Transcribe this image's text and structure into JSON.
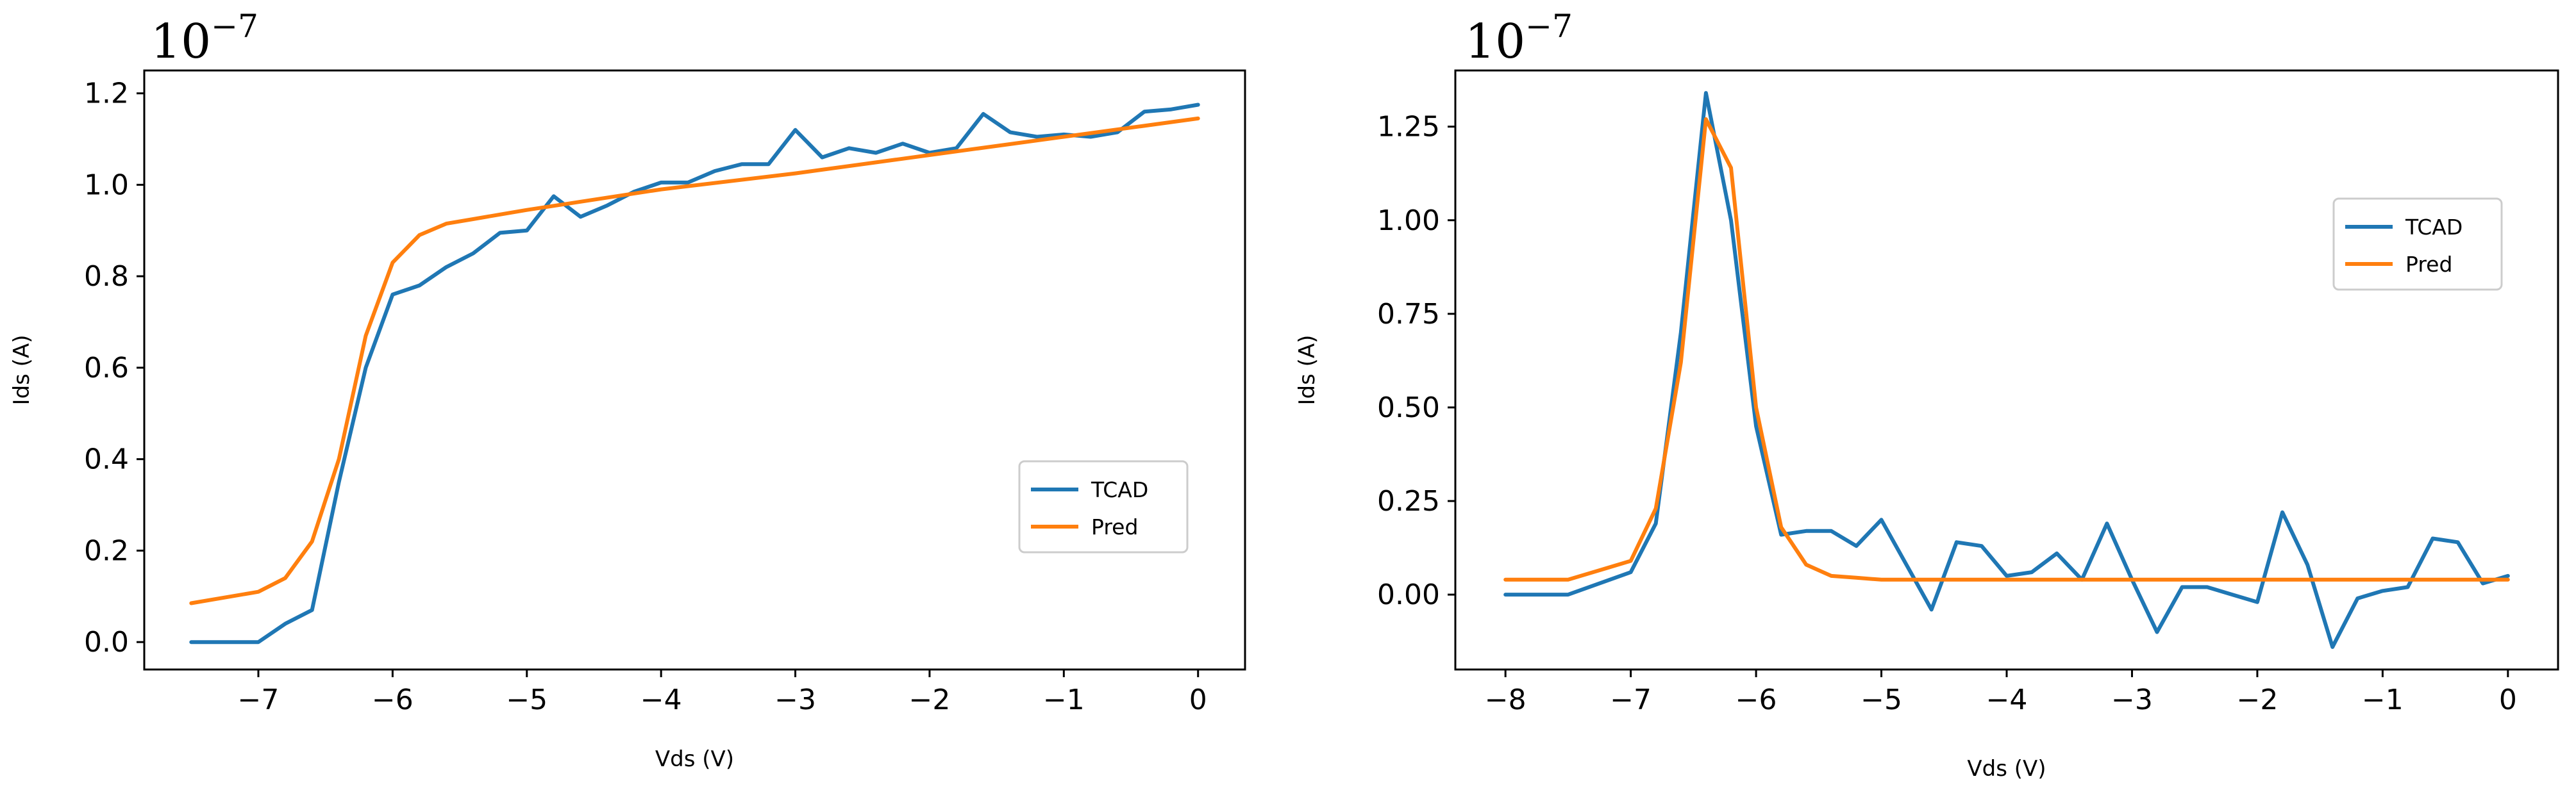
{
  "chart_data": [
    {
      "type": "line",
      "title": "",
      "xlabel": "Vds (V)",
      "ylabel": "Ids (A)",
      "offset_label": "10",
      "offset_exponent": "−7",
      "xlim": [
        -7.85,
        0.35
      ],
      "ylim": [
        -0.06,
        1.25
      ],
      "xticks": [
        -7,
        -6,
        -5,
        -4,
        -3,
        -2,
        -1,
        0
      ],
      "xtick_labels": [
        "−7",
        "−6",
        "−5",
        "−4",
        "−3",
        "−2",
        "−1",
        "0"
      ],
      "yticks": [
        0.0,
        0.2,
        0.4,
        0.6,
        0.8,
        1.0,
        1.2
      ],
      "ytick_labels": [
        "0.0",
        "0.2",
        "0.4",
        "0.6",
        "0.8",
        "1.0",
        "1.2"
      ],
      "legend_position": "center-right",
      "series": [
        {
          "name": "TCAD",
          "color": "#1f77b4",
          "x": [
            -7.5,
            -7.0,
            -6.8,
            -6.6,
            -6.4,
            -6.2,
            -6.0,
            -5.8,
            -5.6,
            -5.4,
            -5.2,
            -5.0,
            -4.8,
            -4.6,
            -4.4,
            -4.2,
            -4.0,
            -3.8,
            -3.6,
            -3.4,
            -3.2,
            -3.0,
            -2.8,
            -2.6,
            -2.4,
            -2.2,
            -2.0,
            -1.8,
            -1.6,
            -1.4,
            -1.2,
            -1.0,
            -0.8,
            -0.6,
            -0.4,
            -0.2,
            0.0
          ],
          "y": [
            0.0,
            0.0,
            0.04,
            0.07,
            0.35,
            0.6,
            0.76,
            0.78,
            0.82,
            0.85,
            0.895,
            0.9,
            0.975,
            0.93,
            0.955,
            0.985,
            1.005,
            1.005,
            1.03,
            1.045,
            1.045,
            1.12,
            1.06,
            1.08,
            1.07,
            1.09,
            1.07,
            1.08,
            1.155,
            1.115,
            1.105,
            1.11,
            1.105,
            1.115,
            1.16,
            1.165,
            1.175
          ]
        },
        {
          "name": "Pred",
          "color": "#ff7f0e",
          "x": [
            -7.5,
            -7.2,
            -7.0,
            -6.8,
            -6.6,
            -6.4,
            -6.2,
            -6.0,
            -5.8,
            -5.6,
            -5.4,
            -5.2,
            -5.0,
            -4.0,
            -3.0,
            -2.0,
            -1.0,
            0.0
          ],
          "y": [
            0.085,
            0.1,
            0.11,
            0.14,
            0.22,
            0.4,
            0.67,
            0.83,
            0.89,
            0.915,
            0.925,
            0.935,
            0.945,
            0.99,
            1.025,
            1.065,
            1.105,
            1.145
          ]
        }
      ]
    },
    {
      "type": "line",
      "title": "",
      "xlabel": "Vds (V)",
      "ylabel": "Ids (A)",
      "offset_label": "10",
      "offset_exponent": "−7",
      "xlim": [
        -8.4,
        0.4
      ],
      "ylim": [
        -0.2,
        1.4
      ],
      "xticks": [
        -8,
        -7,
        -6,
        -5,
        -4,
        -3,
        -2,
        -1,
        0
      ],
      "xtick_labels": [
        "−8",
        "−7",
        "−6",
        "−5",
        "−4",
        "−3",
        "−2",
        "−1",
        "0"
      ],
      "yticks": [
        0.0,
        0.25,
        0.5,
        0.75,
        1.0,
        1.25
      ],
      "ytick_labels": [
        "0.00",
        "0.25",
        "0.50",
        "0.75",
        "1.00",
        "1.25"
      ],
      "legend_position": "upper-right",
      "series": [
        {
          "name": "TCAD",
          "color": "#1f77b4",
          "x": [
            -8.0,
            -7.5,
            -7.0,
            -6.8,
            -6.6,
            -6.4,
            -6.2,
            -6.0,
            -5.8,
            -5.6,
            -5.4,
            -5.2,
            -5.0,
            -4.8,
            -4.6,
            -4.4,
            -4.2,
            -4.0,
            -3.8,
            -3.6,
            -3.4,
            -3.2,
            -3.0,
            -2.8,
            -2.6,
            -2.4,
            -2.2,
            -2.0,
            -1.8,
            -1.6,
            -1.4,
            -1.2,
            -1.0,
            -0.8,
            -0.6,
            -0.4,
            -0.2,
            0.0
          ],
          "y": [
            0.0,
            0.0,
            0.06,
            0.19,
            0.7,
            1.34,
            1.0,
            0.45,
            0.16,
            0.17,
            0.17,
            0.13,
            0.2,
            0.08,
            -0.04,
            0.14,
            0.13,
            0.05,
            0.06,
            0.11,
            0.04,
            0.19,
            0.04,
            -0.1,
            0.02,
            0.02,
            0.0,
            -0.02,
            0.22,
            0.08,
            -0.14,
            -0.01,
            0.01,
            0.02,
            0.15,
            0.14,
            0.03,
            0.05
          ]
        },
        {
          "name": "Pred",
          "color": "#ff7f0e",
          "x": [
            -8.0,
            -7.5,
            -7.0,
            -6.8,
            -6.6,
            -6.4,
            -6.2,
            -6.0,
            -5.8,
            -5.6,
            -5.4,
            -5.2,
            -5.0,
            -4.0,
            -3.0,
            -2.0,
            -1.0,
            0.0
          ],
          "y": [
            0.04,
            0.04,
            0.09,
            0.23,
            0.62,
            1.27,
            1.14,
            0.5,
            0.18,
            0.08,
            0.05,
            0.045,
            0.04,
            0.04,
            0.04,
            0.04,
            0.04,
            0.04
          ]
        }
      ]
    }
  ]
}
